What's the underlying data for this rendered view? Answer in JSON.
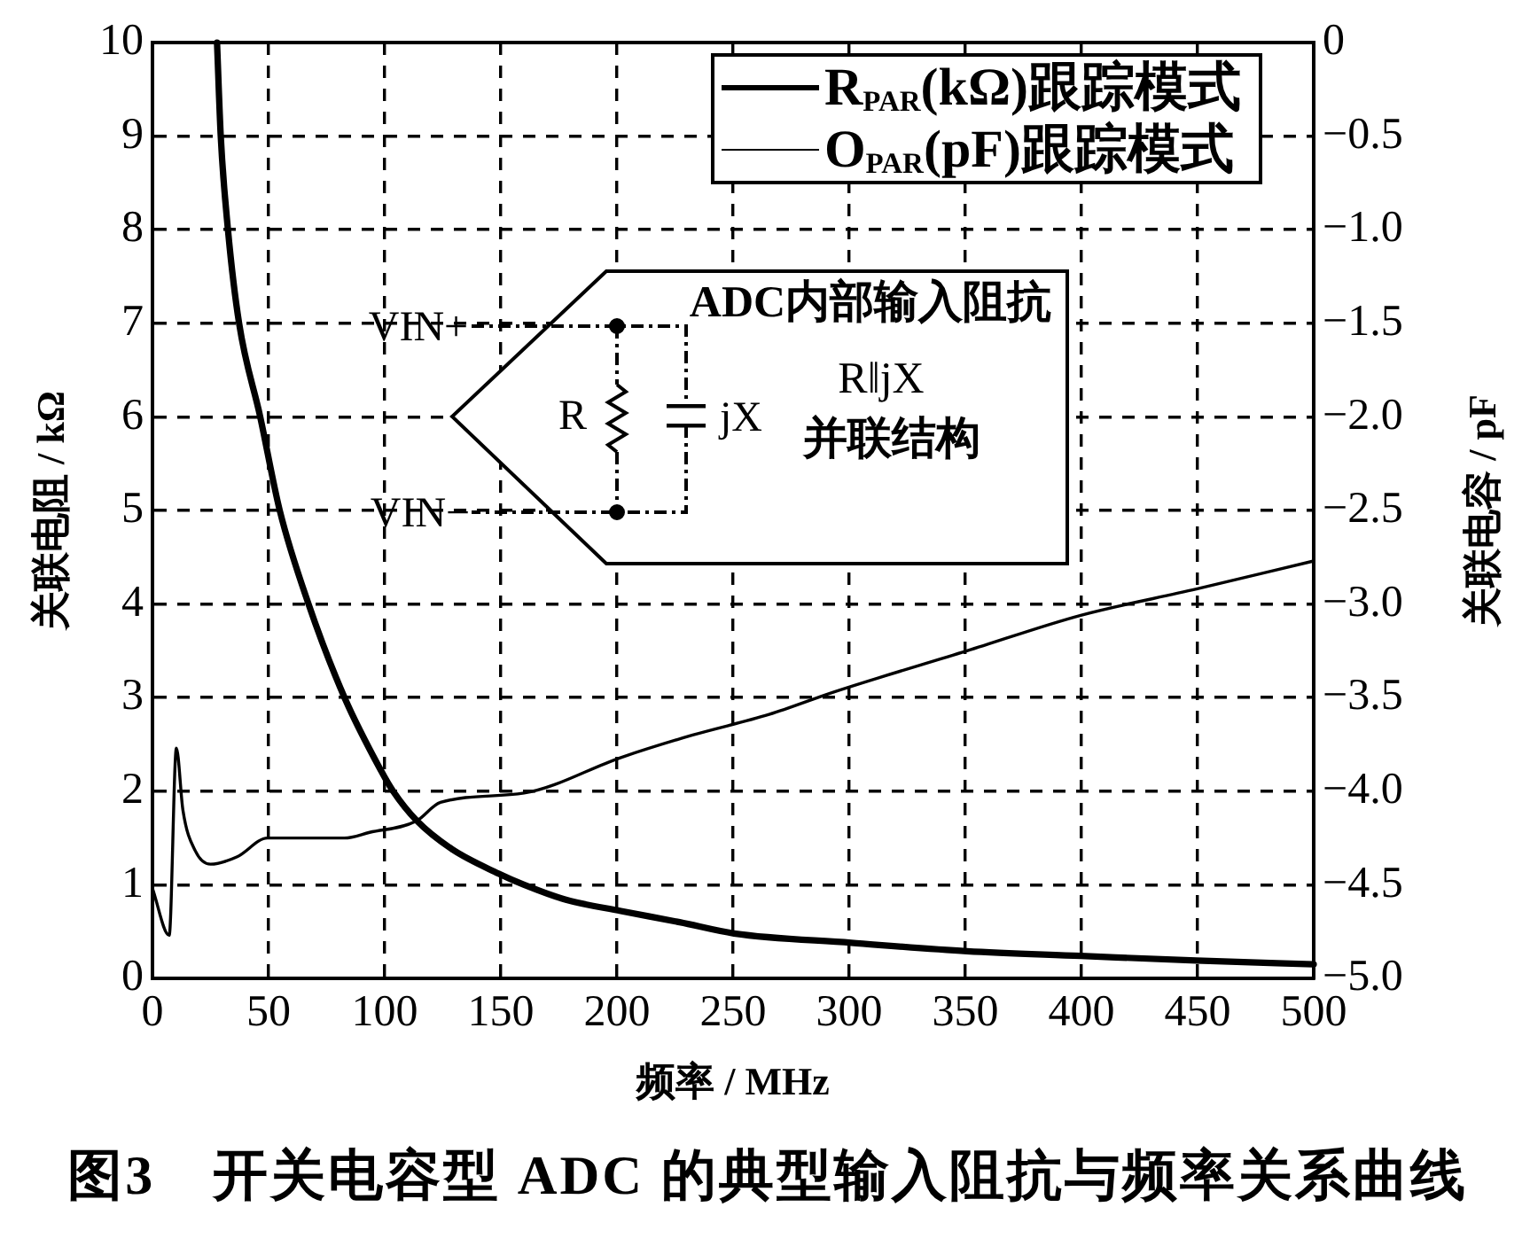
{
  "chart_data": {
    "type": "line",
    "xlabel": "频率 / MHz",
    "ylabel": "关联电阻 / kΩ",
    "y2label": "关联电容 / pF",
    "annotations": [
      "图3　开关电容型 ADC 的典型输入阻抗与频率关系曲线",
      "ADC内部输入阻抗",
      "R‖jX",
      "并联结构",
      "VIN+",
      "VIN−",
      "R",
      "jX"
    ],
    "xlim": [
      0,
      500
    ],
    "xticks": [
      0,
      50,
      100,
      150,
      200,
      250,
      300,
      350,
      400,
      450,
      500
    ],
    "ylim": [
      0,
      10
    ],
    "yticks": [
      0,
      1,
      2,
      3,
      4,
      5,
      6,
      7,
      8,
      9,
      10
    ],
    "y2lim": [
      -5,
      0
    ],
    "y2ticks": [
      {
        "value": -5,
        "label": "−5.0"
      },
      {
        "value": -4.5,
        "label": "−4.5"
      },
      {
        "value": -4,
        "label": "−4.0"
      },
      {
        "value": -3.5,
        "label": "−3.5"
      },
      {
        "value": -3,
        "label": "−3.0"
      },
      {
        "value": -2.5,
        "label": "−2.5"
      },
      {
        "value": -2,
        "label": "−2.0"
      },
      {
        "value": -1.5,
        "label": "−1.5"
      },
      {
        "value": -1,
        "label": "−1.0"
      },
      {
        "value": -0.5,
        "label": "−0.5"
      },
      0
    ],
    "grid": true,
    "legend": "top right",
    "marker": "none",
    "line_style": "solid",
    "series": [
      {
        "name": "R$_{PAR}$(kΩ)跟踪模式",
        "color": "#000000",
        "x": [
          27.8,
          29.4,
          32.5,
          37.3,
          46.4,
          54.8,
          67.2,
          82.7,
          98.4,
          103.6,
          113.6,
          129,
          149,
          160,
          178,
          201.7,
          227,
          250.4,
          300.9,
          350.7,
          399.7,
          449.5,
          500
        ],
        "values": [
          10,
          9,
          8,
          7,
          6,
          5,
          4,
          3,
          2.22,
          2,
          1.69,
          1.38,
          1.12,
          1,
          0.84,
          0.72,
          0.6,
          0.48,
          0.38,
          0.29,
          0.24,
          0.19,
          0.15
        ]
      },
      {
        "name": "O$_{PAR}$(pF)跟踪模式",
        "color": "#000000",
        "axis": "y2",
        "x": [
          0,
          7.2,
          10.3,
          13.1,
          18.5,
          25,
          36.5,
          49.5,
          82.7,
          93.5,
          113.6,
          124,
          160,
          201.7,
          232.6,
          265.5,
          293.4,
          350.7,
          399.7,
          449.5,
          500
        ],
        "values": [
          -4.52,
          -4.77,
          -3.77,
          -4.1,
          -4.32,
          -4.39,
          -4.35,
          -4.25,
          -4.25,
          -4.22,
          -4.16,
          -4.06,
          -4.01,
          -3.82,
          -3.7,
          -3.59,
          -3.47,
          -3.25,
          -3.06,
          -2.92,
          -2.77
        ]
      }
    ]
  }
}
